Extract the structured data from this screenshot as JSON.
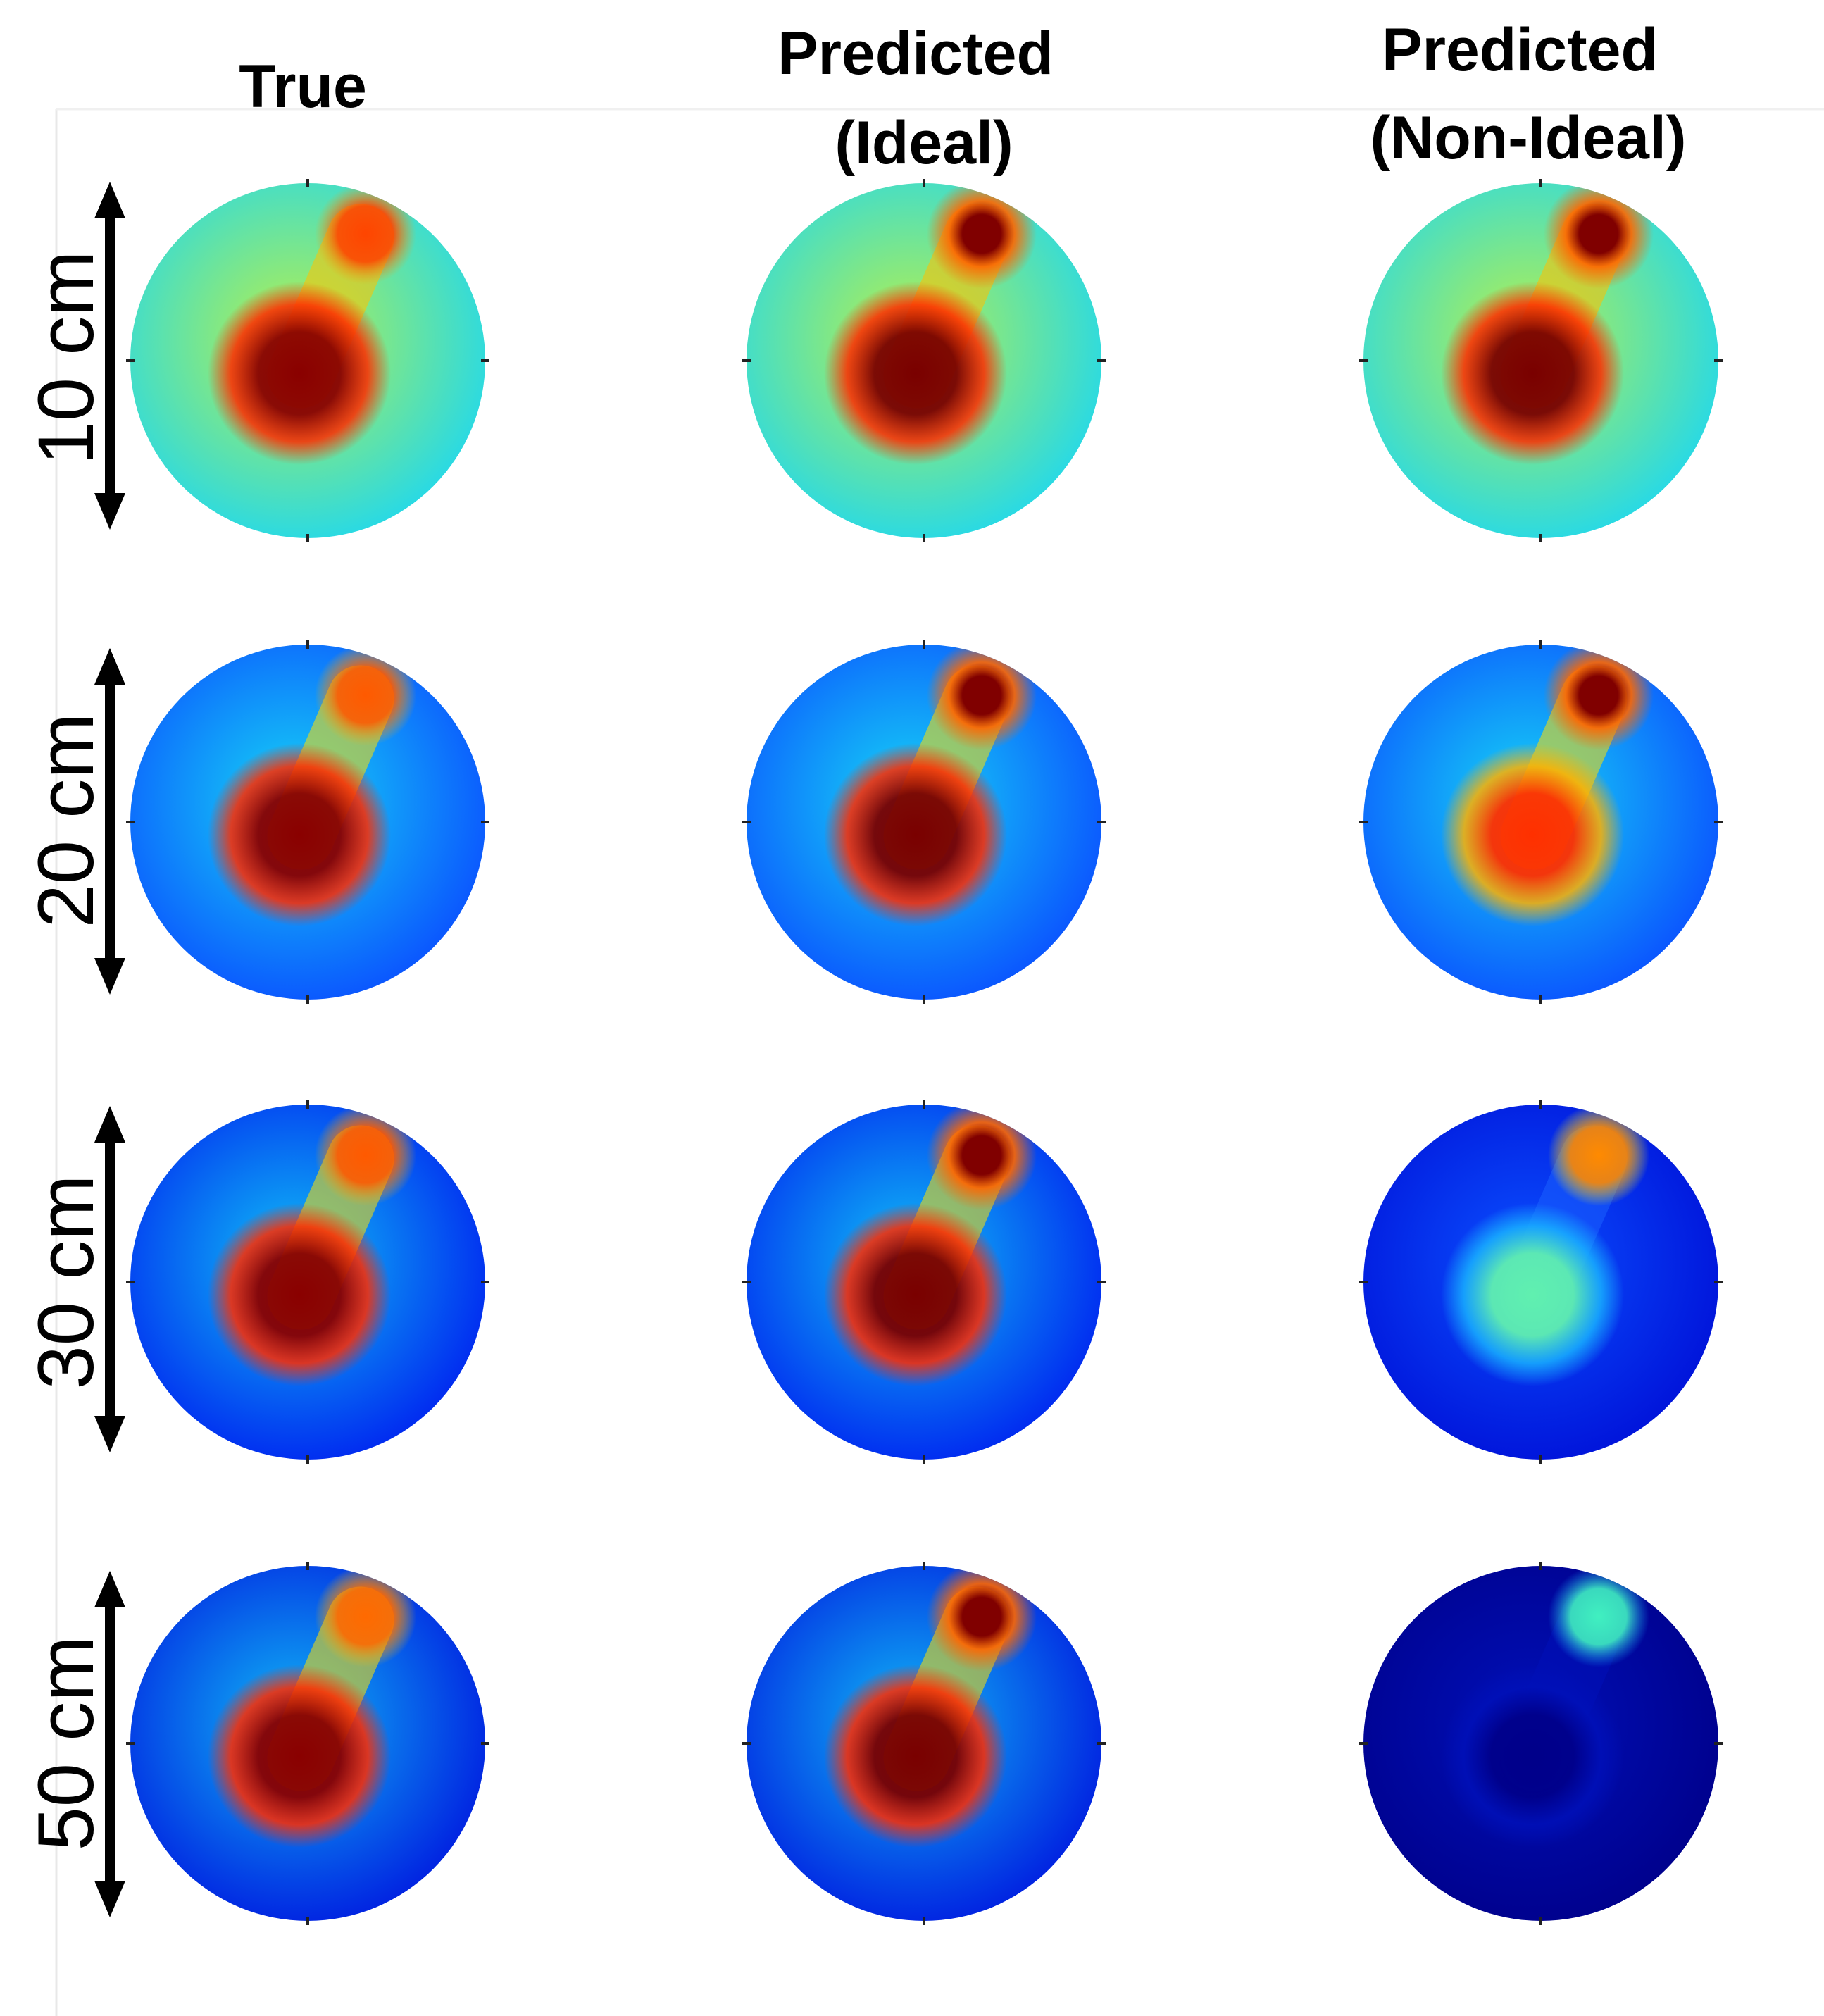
{
  "figure": {
    "columns": [
      {
        "id": "true",
        "title_lines": [
          "True"
        ]
      },
      {
        "id": "predicted-ideal",
        "title_lines": [
          "Predicted",
          "(Ideal)"
        ]
      },
      {
        "id": "predicted-non-ideal",
        "title_lines": [
          "Predicted",
          "(Non-Ideal)"
        ]
      }
    ],
    "rows": [
      {
        "id": "10cm",
        "label": "10 cm"
      },
      {
        "id": "20cm",
        "label": "20 cm"
      },
      {
        "id": "30cm",
        "label": "30 cm"
      },
      {
        "id": "50cm",
        "label": "50 cm"
      }
    ],
    "colormap": "jet",
    "panels": [
      [
        {
          "bg_outer": "#1ed8f0",
          "bg_inner": "#b8f04a",
          "big_core": "#8a0000",
          "big_halo": "#ff2a00",
          "small_core": "#ff4500",
          "small_halo": "#ff9a00",
          "bridge": "#ffc400",
          "small_sharp": false
        },
        {
          "bg_outer": "#1ed8f0",
          "bg_inner": "#b8f04a",
          "big_core": "#7a0000",
          "big_halo": "#ff2a00",
          "small_core": "#800000",
          "small_halo": "#ff6600",
          "bridge": "#ffc000",
          "small_sharp": true
        },
        {
          "bg_outer": "#1ed8f0",
          "bg_inner": "#b8f04a",
          "big_core": "#7a0000",
          "big_halo": "#ff2a00",
          "small_core": "#800000",
          "small_halo": "#ff6600",
          "bridge": "#ffc000",
          "small_sharp": true
        }
      ],
      [
        {
          "bg_outer": "#0a4dff",
          "bg_inner": "#16d6f5",
          "big_core": "#8a0000",
          "big_halo": "#ff2a00",
          "small_core": "#ff5a00",
          "small_halo": "#ffb000",
          "bridge": "#ffe000",
          "small_sharp": false
        },
        {
          "bg_outer": "#0a4dff",
          "bg_inner": "#16d6f5",
          "big_core": "#7a0000",
          "big_halo": "#ff2a00",
          "small_core": "#800000",
          "small_halo": "#ff6600",
          "bridge": "#ffe000",
          "small_sharp": true
        },
        {
          "bg_outer": "#0a4dff",
          "bg_inner": "#16d6f5",
          "big_core": "#ff3000",
          "big_halo": "#ffb000",
          "small_core": "#800000",
          "small_halo": "#ff6600",
          "bridge": "#ffe000",
          "small_sharp": true
        }
      ],
      [
        {
          "bg_outer": "#0020f0",
          "bg_inner": "#10c0f5",
          "big_core": "#8a0000",
          "big_halo": "#ff2a00",
          "small_core": "#ff5a00",
          "small_halo": "#ffb000",
          "bridge": "#ffe000",
          "small_sharp": false
        },
        {
          "bg_outer": "#0020f0",
          "bg_inner": "#10c0f5",
          "big_core": "#7a0000",
          "big_halo": "#ff2a00",
          "small_core": "#800000",
          "small_halo": "#ff6600",
          "bridge": "#ffe000",
          "small_sharp": true
        },
        {
          "bg_outer": "#0010d8",
          "bg_inner": "#0a50ff",
          "big_core": "#60f0b0",
          "big_halo": "#18b0ff",
          "small_core": "#ff8a00",
          "small_halo": "#e8f030",
          "bridge": "#1a60ff",
          "small_sharp": false
        }
      ],
      [
        {
          "bg_outer": "#0018e0",
          "bg_inner": "#10b8f5",
          "big_core": "#8a0000",
          "big_halo": "#ff2a00",
          "small_core": "#ff6a00",
          "small_halo": "#ffc000",
          "bridge": "#ffe000",
          "small_sharp": false
        },
        {
          "bg_outer": "#0018e0",
          "bg_inner": "#10b8f5",
          "big_core": "#7a0000",
          "big_halo": "#ff2a00",
          "small_core": "#800000",
          "small_halo": "#ff6600",
          "bridge": "#ffe000",
          "small_sharp": true
        },
        {
          "bg_outer": "#00008a",
          "bg_inner": "#0010b8",
          "big_core": "#00008a",
          "big_halo": "#0010b8",
          "small_core": "#40f0c0",
          "small_halo": "#10a0ff",
          "bridge": "#0010b8",
          "small_sharp": false
        }
      ]
    ]
  }
}
